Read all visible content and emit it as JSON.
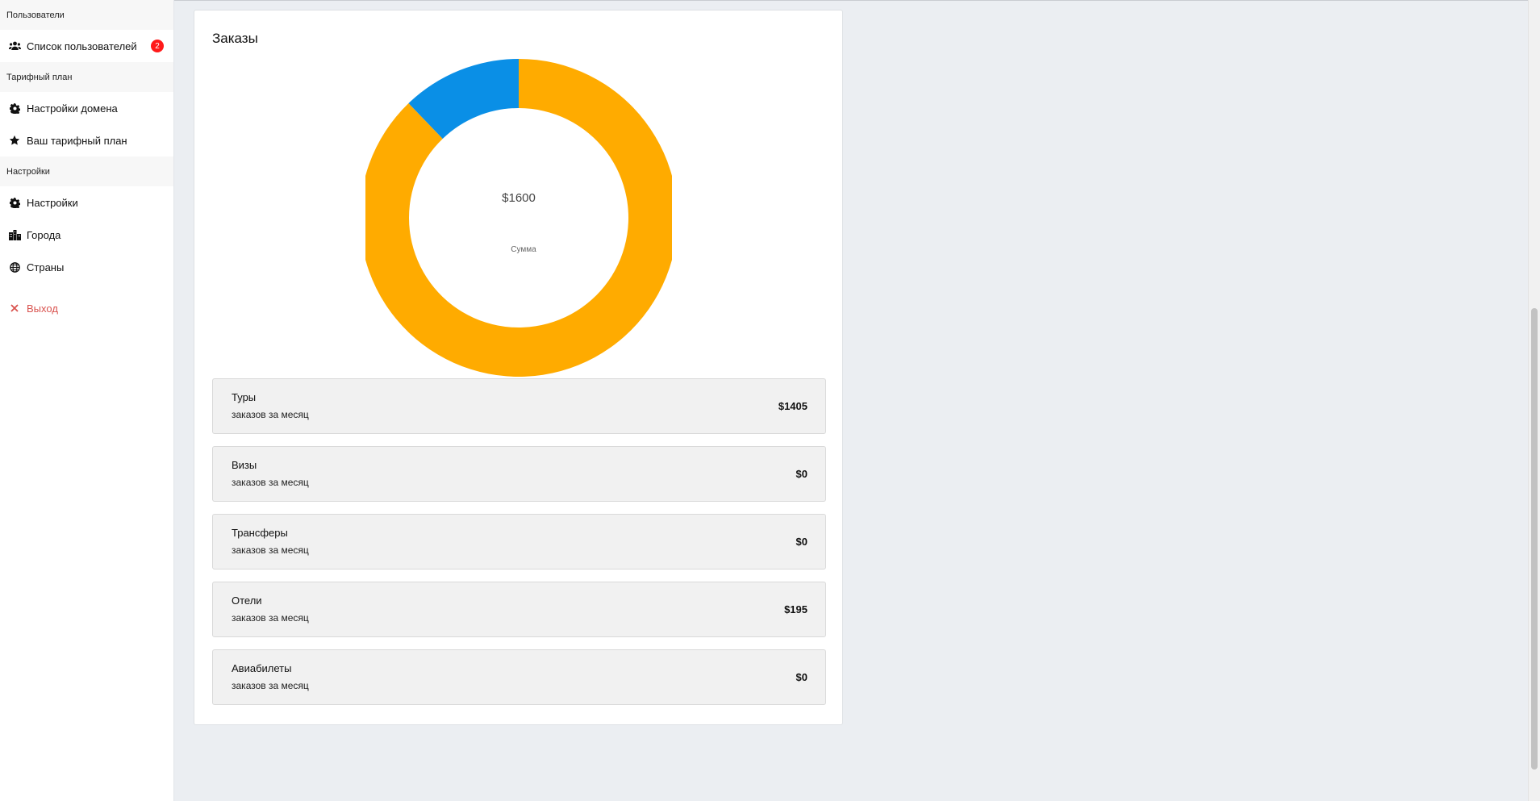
{
  "sidebar": {
    "sections": [
      {
        "header": "Пользователи",
        "items": [
          {
            "label": "Список пользователей",
            "icon": "users-icon",
            "badge": "2"
          }
        ]
      },
      {
        "header": "Тарифный план",
        "items": [
          {
            "label": "Настройки домена",
            "icon": "gear-icon"
          },
          {
            "label": "Ваш тарифный план",
            "icon": "star-icon"
          }
        ]
      },
      {
        "header": "Настройки",
        "items": [
          {
            "label": "Настройки",
            "icon": "gear-icon"
          },
          {
            "label": "Города",
            "icon": "city-icon"
          },
          {
            "label": "Страны",
            "icon": "globe-icon"
          }
        ]
      }
    ],
    "logout": {
      "label": "Выход",
      "icon": "close-icon",
      "color": "#d9534f"
    }
  },
  "card": {
    "title": "Заказы",
    "center_value": "$1600",
    "center_label": "Сумма"
  },
  "chart_data": {
    "type": "pie",
    "donut": true,
    "categories": [
      "Туры",
      "Визы",
      "Трансферы",
      "Отели",
      "Авиабилеты"
    ],
    "values": [
      1405,
      0,
      0,
      195,
      0
    ],
    "colors": [
      "#ffab00",
      "#00a65a",
      "#f56954",
      "#0a8fe6",
      "#6f42c1"
    ],
    "center_text": "$1600",
    "center_subtext": "Сумма"
  },
  "stats": [
    {
      "name": "Туры",
      "sub": "заказов за месяц",
      "value": "$1405"
    },
    {
      "name": "Визы",
      "sub": "заказов за месяц",
      "value": "$0"
    },
    {
      "name": "Трансферы",
      "sub": "заказов за месяц",
      "value": "$0"
    },
    {
      "name": "Отели",
      "sub": "заказов за месяц",
      "value": "$195"
    },
    {
      "name": "Авиабилеты",
      "sub": "заказов за месяц",
      "value": "$0"
    }
  ]
}
